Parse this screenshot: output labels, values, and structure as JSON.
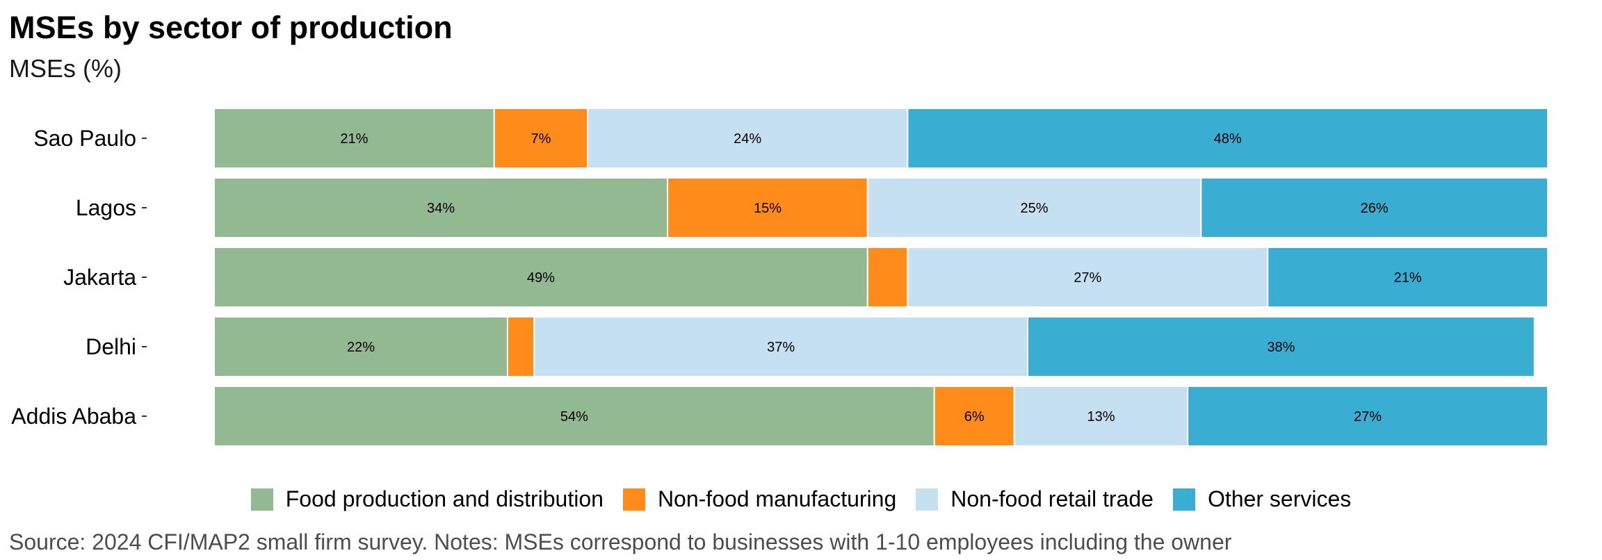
{
  "title": "MSEs by sector of production",
  "subtitle": "MSEs (%)",
  "source": "Source: 2024 CFI/MAP2 small firm survey. Notes: MSEs correspond to businesses with 1-10 employees including the owner",
  "colors": {
    "Food production and distribution": "#93b993",
    "Non-food manufacturing": "#ff8c1a",
    "Non-food retail trade": "#c5e0f1",
    "Other services": "#3aaed2"
  },
  "chart_data": {
    "type": "bar",
    "orientation": "horizontal",
    "stacked": true,
    "title": "MSEs by sector of production",
    "ylabel": "MSEs (%)",
    "categories": [
      "Sao Paulo",
      "Lagos",
      "Jakarta",
      "Delhi",
      "Addis Ababa"
    ],
    "series": [
      {
        "name": "Food production and distribution",
        "values": [
          21,
          34,
          49,
          22,
          54
        ],
        "labels": [
          "21%",
          "34%",
          "49%",
          "22%",
          "54%"
        ]
      },
      {
        "name": "Non-food manufacturing",
        "values": [
          7,
          15,
          3,
          2,
          6
        ],
        "labels": [
          "7%",
          "15%",
          "",
          "",
          "6%"
        ]
      },
      {
        "name": "Non-food retail trade",
        "values": [
          24,
          25,
          27,
          37,
          13
        ],
        "labels": [
          "24%",
          "25%",
          "27%",
          "37%",
          "13%"
        ]
      },
      {
        "name": "Other services",
        "values": [
          48,
          26,
          21,
          38,
          27
        ],
        "labels": [
          "48%",
          "26%",
          "21%",
          "38%",
          "27%"
        ]
      }
    ],
    "xlim": [
      0,
      100
    ],
    "grid": false,
    "legend_position": "bottom"
  }
}
